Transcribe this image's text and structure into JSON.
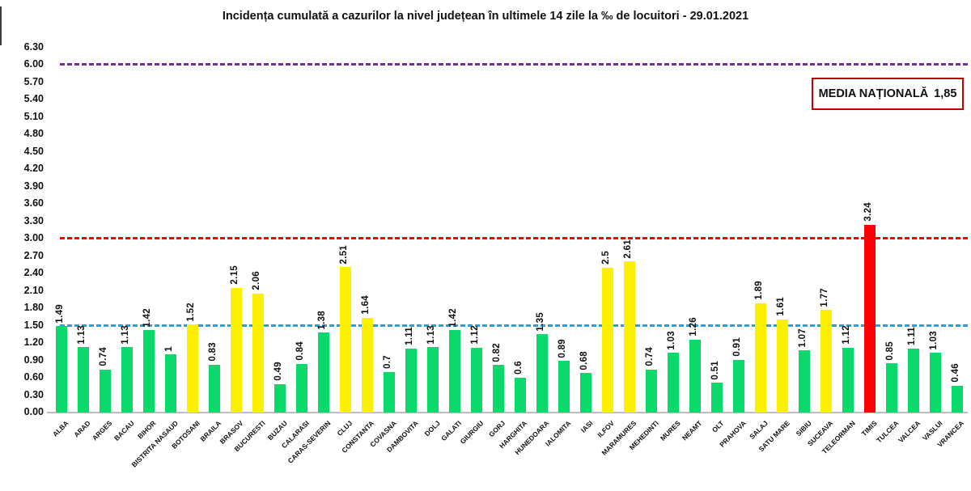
{
  "title": "Incidența cumulată a cazurilor la nivel județean în ultimele 14 zile la ‰ de locuitori - 29.01.2021",
  "national_average_box": {
    "label": "MEDIA NAȚIONALĂ",
    "value": "1,85",
    "border_color": "#c00000"
  },
  "chart_data": {
    "type": "bar",
    "title": "Incidența cumulată a cazurilor la nivel județean în ultimele 14 zile la ‰ de locuitori - 29.01.2021",
    "xlabel": "",
    "ylabel": "",
    "ylim": [
      0,
      6.3
    ],
    "grid": false,
    "legend": false,
    "ytick_labels": [
      "6.30",
      "6.00",
      "5.70",
      "5.40",
      "5.10",
      "4.80",
      "4.50",
      "4.20",
      "3.90",
      "3.60",
      "3.30",
      "3.00",
      "2.70",
      "2.40",
      "2.10",
      "1.80",
      "1.50",
      "1.20",
      "0.90",
      "0.60",
      "0.30",
      "0.00"
    ],
    "categories": [
      "ALBA",
      "ARAD",
      "ARGES",
      "BACAU",
      "BIHOR",
      "BISTRITA NASAUD",
      "BOTOSANI",
      "BRAILA",
      "BRASOV",
      "BUCURESTI",
      "BUZAU",
      "CALARASI",
      "CARAS-SEVERIN",
      "CLUJ",
      "CONSTANTA",
      "COVASNA",
      "DAMBOVITA",
      "DOLJ",
      "GALATI",
      "GIURGIU",
      "GORJ",
      "HARGHITA",
      "HUNEDOARA",
      "IALOMITA",
      "IASI",
      "ILFOV",
      "MARAMURES",
      "MEHEDINTI",
      "MURES",
      "NEAMT",
      "OLT",
      "PRAHOVA",
      "SALAJ",
      "SATU MARE",
      "SIBIU",
      "SUCEAVA",
      "TELEORMAN",
      "TIMIS",
      "TULCEA",
      "VALCEA",
      "VASLUI",
      "VRANCEA"
    ],
    "values": [
      1.49,
      1.13,
      0.74,
      1.13,
      1.42,
      1,
      1.52,
      0.83,
      2.15,
      2.06,
      0.49,
      0.84,
      1.38,
      2.51,
      1.64,
      0.7,
      1.11,
      1.13,
      1.42,
      1.12,
      0.82,
      0.6,
      1.35,
      0.89,
      0.68,
      2.5,
      2.61,
      0.74,
      1.03,
      1.26,
      0.51,
      0.91,
      1.89,
      1.61,
      1.07,
      1.77,
      1.12,
      3.24,
      0.85,
      1.11,
      1.03,
      0.46
    ],
    "value_labels": [
      "1.49",
      "1.13",
      "0.74",
      "1.13",
      "1.42",
      "1",
      "1.52",
      "0.83",
      "2.15",
      "2.06",
      "0.49",
      "0.84",
      "1.38",
      "2.51",
      "1.64",
      "0.7",
      "1.11",
      "1.13",
      "1.42",
      "1.12",
      "0.82",
      "0.6",
      "1.35",
      "0.89",
      "0.68",
      "2.5",
      "2.61",
      "0.74",
      "1.03",
      "1.26",
      "0.51",
      "0.91",
      "1.89",
      "1.61",
      "1.07",
      "1.77",
      "1.12",
      "3.24",
      "0.85",
      "1.11",
      "1.03",
      "0.46"
    ],
    "bar_colors": {
      "green": "#0bd96b",
      "yellow": "#fdf000",
      "red": "#ff0000"
    },
    "color_thresholds": {
      "yellow_min": 1.5,
      "red_min": 3.0
    },
    "reference_lines": [
      {
        "name": "purple-line-6.00",
        "value": 6.0,
        "color": "#7030a0"
      },
      {
        "name": "red-line-3.00",
        "value": 3.0,
        "color": "#ff0000"
      },
      {
        "name": "blue-line-1.50",
        "value": 1.5,
        "color": "#2e9fd9"
      }
    ]
  }
}
